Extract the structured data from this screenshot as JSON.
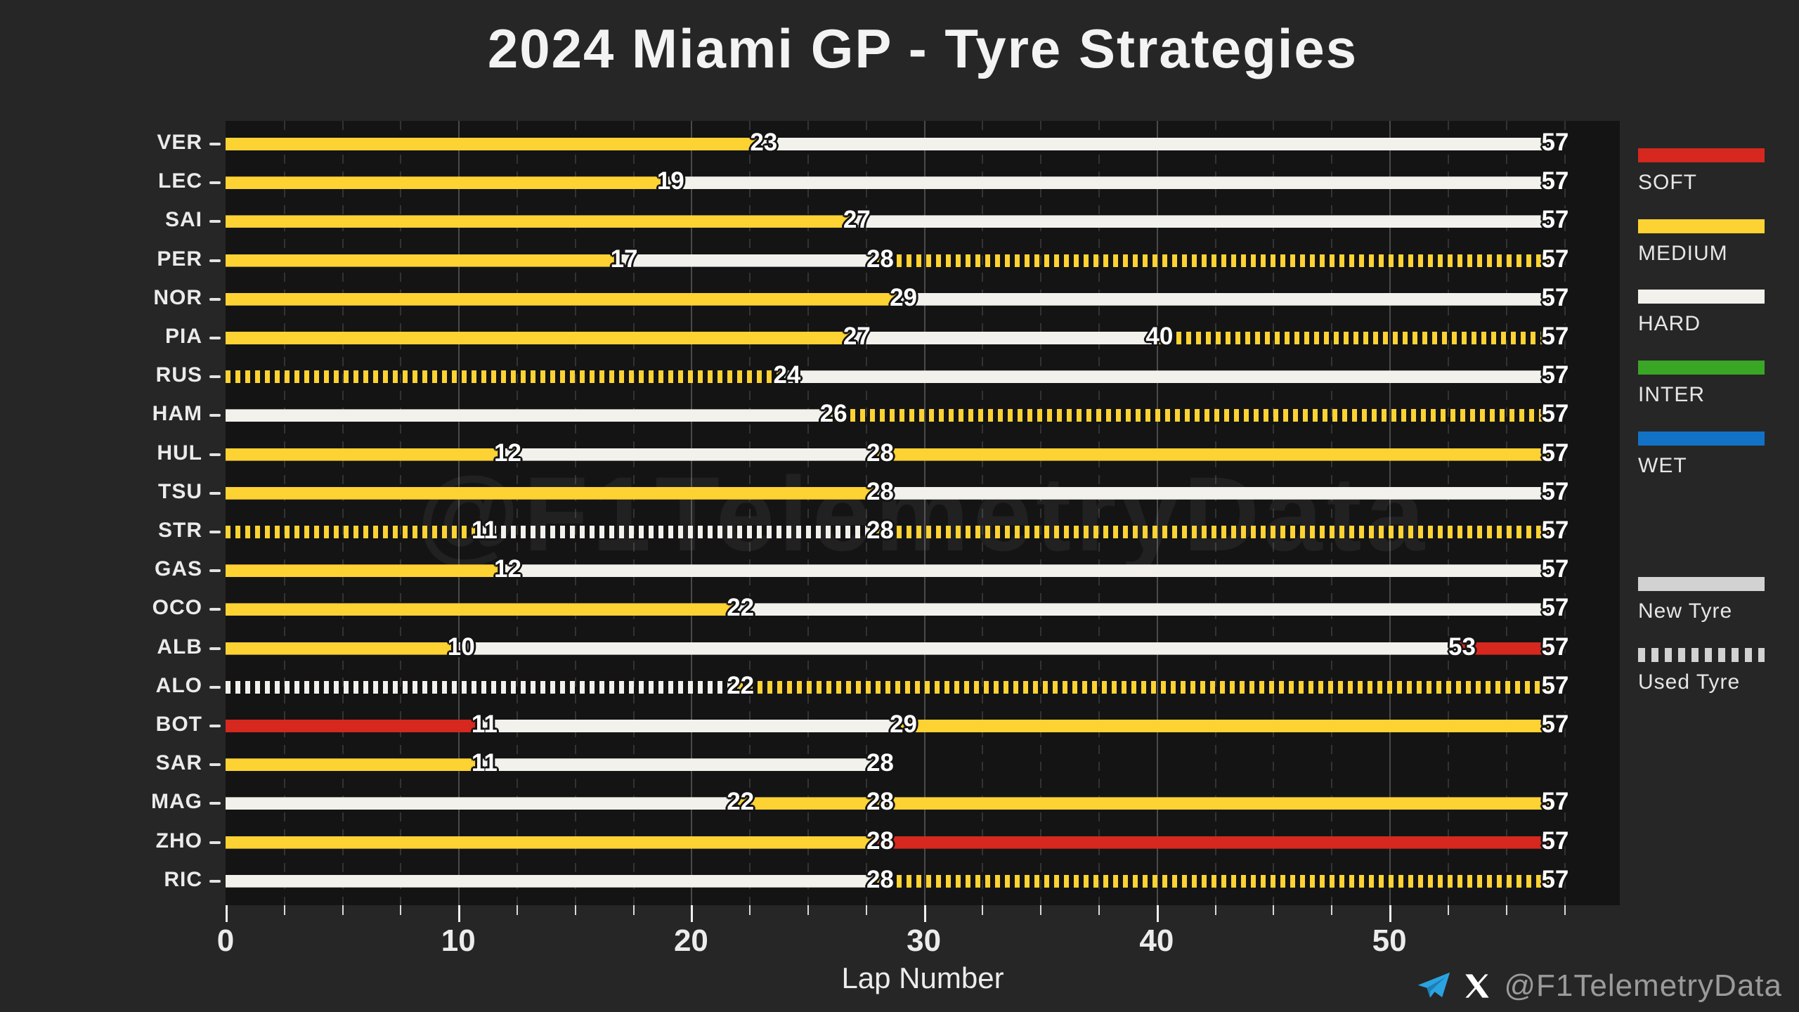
{
  "title": "2024 Miami GP - Tyre Strategies",
  "watermark": "@F1TelemetryData",
  "xlabel": "Lap Number",
  "footer": {
    "telegram_icon": "telegram-icon",
    "x_icon": "x-icon",
    "handle": "@F1TelemetryData",
    "telegram_color": "#2ba3e0",
    "x_color": "#ffffff"
  },
  "colors": {
    "SOFT": "#d6281e",
    "MEDIUM": "#fdd233",
    "HARD": "#f2f1ec",
    "INTER": "#3aa625",
    "WET": "#1272c5",
    "legend_gray": "#d2d2d2",
    "figure_bg": "#262626",
    "plot_bg": "#141414"
  },
  "legend": {
    "compounds": [
      {
        "label": "SOFT",
        "compound": "SOFT"
      },
      {
        "label": "MEDIUM",
        "compound": "MEDIUM"
      },
      {
        "label": "HARD",
        "compound": "HARD"
      },
      {
        "label": "INTER",
        "compound": "INTER"
      },
      {
        "label": "WET",
        "compound": "WET"
      }
    ],
    "usage": [
      {
        "label": "New Tyre",
        "style": "solid"
      },
      {
        "label": "Used Tyre",
        "style": "striped"
      }
    ]
  },
  "chart_data": {
    "type": "bar",
    "orientation": "horizontal",
    "title": "2024 Miami GP - Tyre Strategies",
    "xlabel": "Lap Number",
    "xlim": [
      0,
      59.9
    ],
    "x_ticks": [
      0,
      10,
      20,
      30,
      40,
      50
    ],
    "x_minor_step": 2.5,
    "total_laps": 57,
    "grid": true,
    "legend_position": "right",
    "drivers": [
      {
        "code": "VER",
        "stints": [
          {
            "compound": "MEDIUM",
            "used": false,
            "start": 0,
            "end": 23
          },
          {
            "compound": "HARD",
            "used": false,
            "start": 23,
            "end": 57
          }
        ]
      },
      {
        "code": "LEC",
        "stints": [
          {
            "compound": "MEDIUM",
            "used": false,
            "start": 0,
            "end": 19
          },
          {
            "compound": "HARD",
            "used": false,
            "start": 19,
            "end": 57
          }
        ]
      },
      {
        "code": "SAI",
        "stints": [
          {
            "compound": "MEDIUM",
            "used": false,
            "start": 0,
            "end": 27
          },
          {
            "compound": "HARD",
            "used": false,
            "start": 27,
            "end": 57
          }
        ]
      },
      {
        "code": "PER",
        "stints": [
          {
            "compound": "MEDIUM",
            "used": false,
            "start": 0,
            "end": 17
          },
          {
            "compound": "HARD",
            "used": false,
            "start": 17,
            "end": 28
          },
          {
            "compound": "MEDIUM",
            "used": true,
            "start": 28,
            "end": 57
          }
        ]
      },
      {
        "code": "NOR",
        "stints": [
          {
            "compound": "MEDIUM",
            "used": false,
            "start": 0,
            "end": 29
          },
          {
            "compound": "HARD",
            "used": false,
            "start": 29,
            "end": 57
          }
        ]
      },
      {
        "code": "PIA",
        "stints": [
          {
            "compound": "MEDIUM",
            "used": false,
            "start": 0,
            "end": 27
          },
          {
            "compound": "HARD",
            "used": false,
            "start": 27,
            "end": 40
          },
          {
            "compound": "MEDIUM",
            "used": true,
            "start": 40,
            "end": 57
          }
        ]
      },
      {
        "code": "RUS",
        "stints": [
          {
            "compound": "MEDIUM",
            "used": true,
            "start": 0,
            "end": 24
          },
          {
            "compound": "HARD",
            "used": false,
            "start": 24,
            "end": 57
          }
        ]
      },
      {
        "code": "HAM",
        "stints": [
          {
            "compound": "HARD",
            "used": false,
            "start": 0,
            "end": 26
          },
          {
            "compound": "MEDIUM",
            "used": true,
            "start": 26,
            "end": 57
          }
        ]
      },
      {
        "code": "HUL",
        "stints": [
          {
            "compound": "MEDIUM",
            "used": false,
            "start": 0,
            "end": 12
          },
          {
            "compound": "HARD",
            "used": false,
            "start": 12,
            "end": 28
          },
          {
            "compound": "MEDIUM",
            "used": false,
            "start": 28,
            "end": 57
          }
        ]
      },
      {
        "code": "TSU",
        "stints": [
          {
            "compound": "MEDIUM",
            "used": false,
            "start": 0,
            "end": 28
          },
          {
            "compound": "HARD",
            "used": false,
            "start": 28,
            "end": 57
          }
        ]
      },
      {
        "code": "STR",
        "stints": [
          {
            "compound": "MEDIUM",
            "used": true,
            "start": 0,
            "end": 11
          },
          {
            "compound": "HARD",
            "used": true,
            "start": 11,
            "end": 28
          },
          {
            "compound": "MEDIUM",
            "used": true,
            "start": 28,
            "end": 57
          }
        ]
      },
      {
        "code": "GAS",
        "stints": [
          {
            "compound": "MEDIUM",
            "used": false,
            "start": 0,
            "end": 12
          },
          {
            "compound": "HARD",
            "used": false,
            "start": 12,
            "end": 57
          }
        ]
      },
      {
        "code": "OCO",
        "stints": [
          {
            "compound": "MEDIUM",
            "used": false,
            "start": 0,
            "end": 22
          },
          {
            "compound": "HARD",
            "used": false,
            "start": 22,
            "end": 57
          }
        ]
      },
      {
        "code": "ALB",
        "stints": [
          {
            "compound": "MEDIUM",
            "used": false,
            "start": 0,
            "end": 10
          },
          {
            "compound": "HARD",
            "used": false,
            "start": 10,
            "end": 53
          },
          {
            "compound": "SOFT",
            "used": false,
            "start": 53,
            "end": 57
          }
        ]
      },
      {
        "code": "ALO",
        "stints": [
          {
            "compound": "HARD",
            "used": true,
            "start": 0,
            "end": 22
          },
          {
            "compound": "MEDIUM",
            "used": true,
            "start": 22,
            "end": 57
          }
        ]
      },
      {
        "code": "BOT",
        "stints": [
          {
            "compound": "SOFT",
            "used": false,
            "start": 0,
            "end": 11
          },
          {
            "compound": "HARD",
            "used": false,
            "start": 11,
            "end": 29
          },
          {
            "compound": "MEDIUM",
            "used": false,
            "start": 29,
            "end": 57
          }
        ]
      },
      {
        "code": "SAR",
        "stints": [
          {
            "compound": "MEDIUM",
            "used": false,
            "start": 0,
            "end": 11
          },
          {
            "compound": "HARD",
            "used": false,
            "start": 11,
            "end": 28
          }
        ]
      },
      {
        "code": "MAG",
        "stints": [
          {
            "compound": "HARD",
            "used": false,
            "start": 0,
            "end": 22
          },
          {
            "compound": "MEDIUM",
            "used": false,
            "start": 22,
            "end": 28
          },
          {
            "compound": "MEDIUM",
            "used": false,
            "start": 28,
            "end": 57
          }
        ]
      },
      {
        "code": "ZHO",
        "stints": [
          {
            "compound": "MEDIUM",
            "used": false,
            "start": 0,
            "end": 28
          },
          {
            "compound": "SOFT",
            "used": false,
            "start": 28,
            "end": 57
          }
        ]
      },
      {
        "code": "RIC",
        "stints": [
          {
            "compound": "HARD",
            "used": false,
            "start": 0,
            "end": 28
          },
          {
            "compound": "MEDIUM",
            "used": true,
            "start": 28,
            "end": 57
          }
        ]
      }
    ]
  }
}
